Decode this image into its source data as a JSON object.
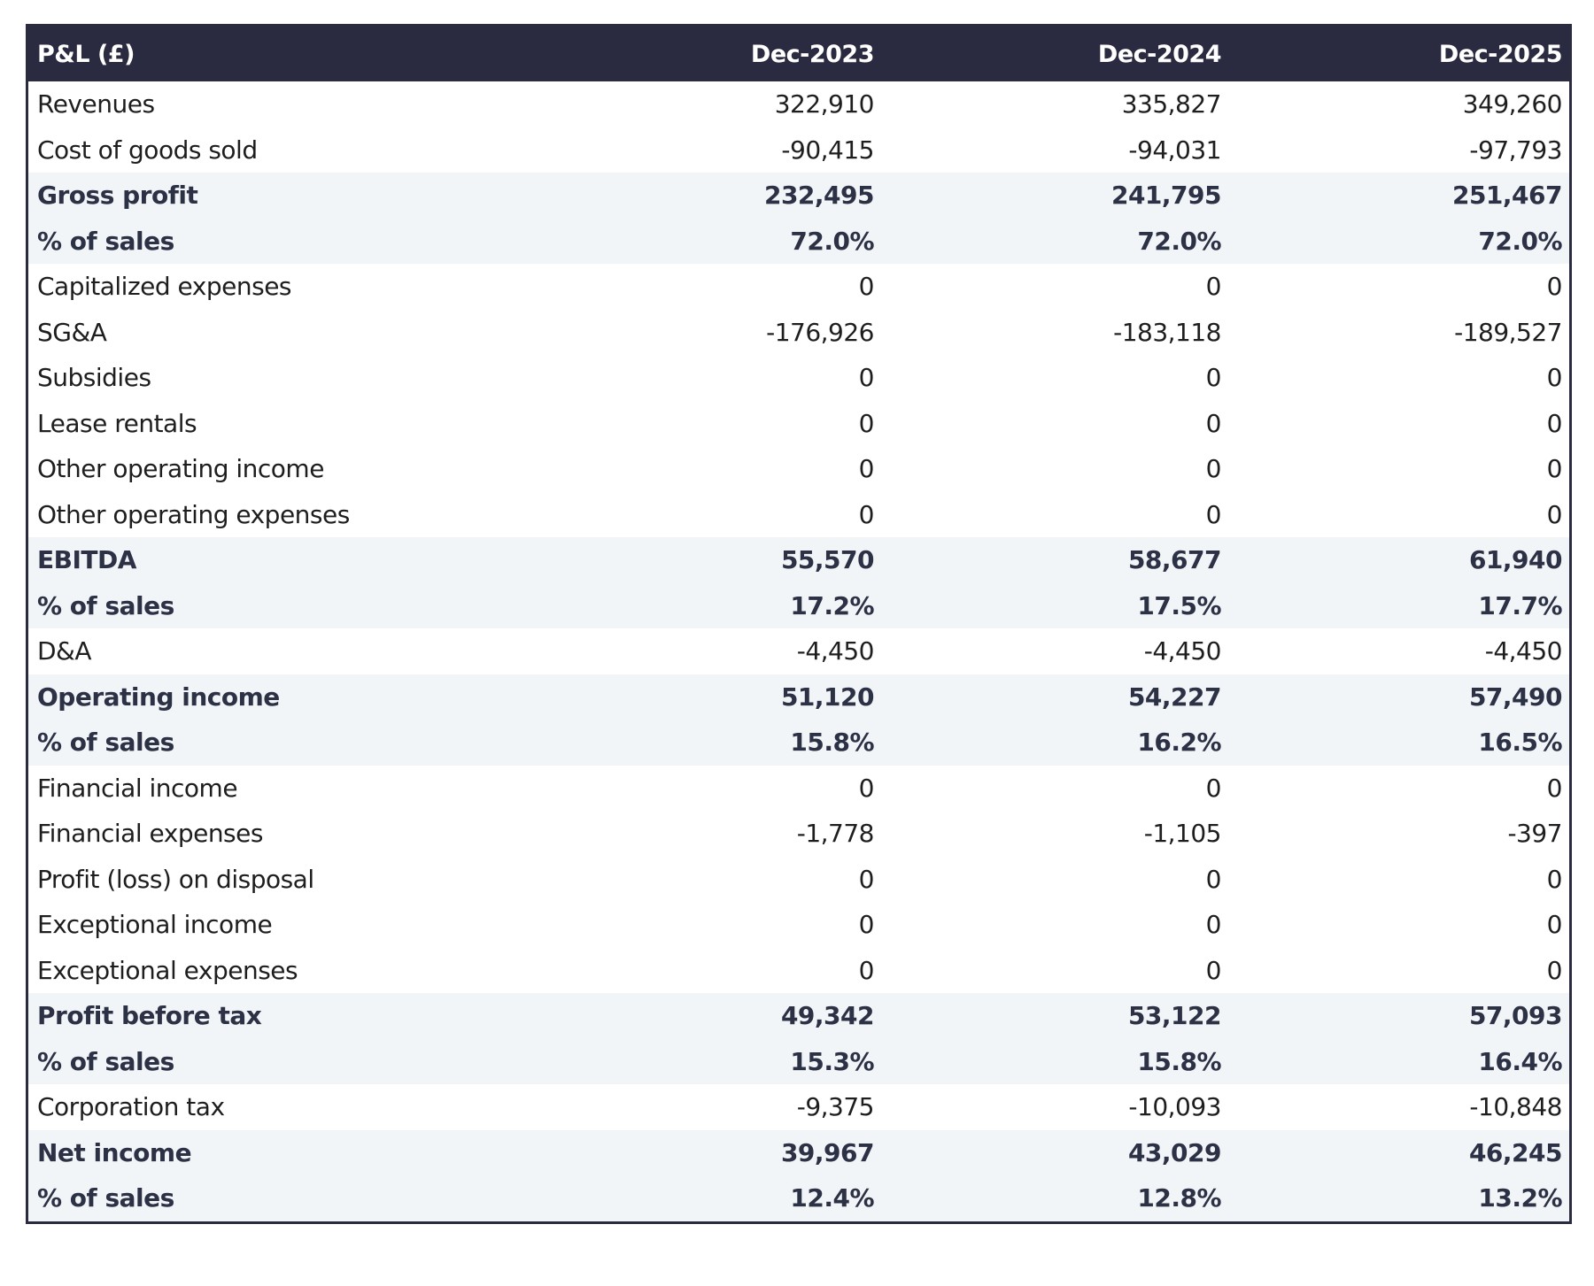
{
  "header": {
    "title": "P&L (£)",
    "periods": [
      "Dec-2023",
      "Dec-2024",
      "Dec-2025"
    ]
  },
  "rows": [
    {
      "label": "Revenues",
      "values": [
        "322,910",
        "335,827",
        "349,260"
      ],
      "bold": false
    },
    {
      "label": "Cost of goods sold",
      "values": [
        "-90,415",
        "-94,031",
        "-97,793"
      ],
      "bold": false
    },
    {
      "label": "Gross profit",
      "values": [
        "232,495",
        "241,795",
        "251,467"
      ],
      "bold": true
    },
    {
      "label": "% of sales",
      "values": [
        "72.0%",
        "72.0%",
        "72.0%"
      ],
      "bold": true
    },
    {
      "label": "Capitalized expenses",
      "values": [
        "0",
        "0",
        "0"
      ],
      "bold": false
    },
    {
      "label": "SG&A",
      "values": [
        "-176,926",
        "-183,118",
        "-189,527"
      ],
      "bold": false
    },
    {
      "label": "Subsidies",
      "values": [
        "0",
        "0",
        "0"
      ],
      "bold": false
    },
    {
      "label": "Lease rentals",
      "values": [
        "0",
        "0",
        "0"
      ],
      "bold": false
    },
    {
      "label": "Other operating income",
      "values": [
        "0",
        "0",
        "0"
      ],
      "bold": false
    },
    {
      "label": "Other operating expenses",
      "values": [
        "0",
        "0",
        "0"
      ],
      "bold": false
    },
    {
      "label": "EBITDA",
      "values": [
        "55,570",
        "58,677",
        "61,940"
      ],
      "bold": true
    },
    {
      "label": "% of sales",
      "values": [
        "17.2%",
        "17.5%",
        "17.7%"
      ],
      "bold": true
    },
    {
      "label": "D&A",
      "values": [
        "-4,450",
        "-4,450",
        "-4,450"
      ],
      "bold": false
    },
    {
      "label": "Operating income",
      "values": [
        "51,120",
        "54,227",
        "57,490"
      ],
      "bold": true
    },
    {
      "label": "% of sales",
      "values": [
        "15.8%",
        "16.2%",
        "16.5%"
      ],
      "bold": true
    },
    {
      "label": "Financial income",
      "values": [
        "0",
        "0",
        "0"
      ],
      "bold": false
    },
    {
      "label": "Financial expenses",
      "values": [
        "-1,778",
        "-1,105",
        "-397"
      ],
      "bold": false
    },
    {
      "label": "Profit (loss) on disposal",
      "values": [
        "0",
        "0",
        "0"
      ],
      "bold": false
    },
    {
      "label": "Exceptional income",
      "values": [
        "0",
        "0",
        "0"
      ],
      "bold": false
    },
    {
      "label": "Exceptional expenses",
      "values": [
        "0",
        "0",
        "0"
      ],
      "bold": false
    },
    {
      "label": "Profit before tax",
      "values": [
        "49,342",
        "53,122",
        "57,093"
      ],
      "bold": true
    },
    {
      "label": "% of sales",
      "values": [
        "15.3%",
        "15.8%",
        "16.4%"
      ],
      "bold": true
    },
    {
      "label": "Corporation tax",
      "values": [
        "-9,375",
        "-10,093",
        "-10,848"
      ],
      "bold": false
    },
    {
      "label": "Net income",
      "values": [
        "39,967",
        "43,029",
        "46,245"
      ],
      "bold": true
    },
    {
      "label": "% of sales",
      "values": [
        "12.4%",
        "12.8%",
        "13.2%"
      ],
      "bold": true
    }
  ],
  "colors": {
    "header_bg": "#2a2a40",
    "highlight_bg": "#f1f5f7",
    "highlight_text": "#2d3145"
  }
}
